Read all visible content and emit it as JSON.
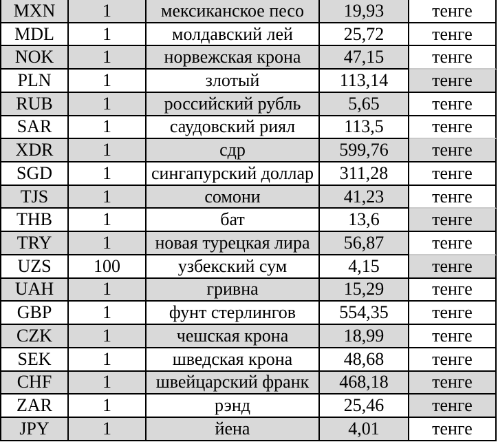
{
  "table": {
    "unit_label": "тенге",
    "colors": {
      "shaded_cell": "#d9d9d9",
      "grid_border": "#000000",
      "light_border": "#c9c9c9",
      "text": "#000000",
      "background": "#ffffff"
    },
    "columns": [
      "code",
      "quantity",
      "name",
      "rate",
      "unit"
    ],
    "rows": [
      {
        "code": "MXN",
        "quantity": "1",
        "name": "мексиканское песо",
        "rate": "19,93",
        "unit": "тенге",
        "shaded": true,
        "unit_shaded": false,
        "unit_border_top_light": false
      },
      {
        "code": "MDL",
        "quantity": "1",
        "name": "молдавский лей",
        "rate": "25,72",
        "unit": "тенге",
        "shaded": false,
        "unit_shaded": false,
        "unit_border_top_light": false
      },
      {
        "code": "NOK",
        "quantity": "1",
        "name": "норвежская крона",
        "rate": "47,15",
        "unit": "тенге",
        "shaded": true,
        "unit_shaded": false,
        "unit_border_top_light": false
      },
      {
        "code": "PLN",
        "quantity": "1",
        "name": "злотый",
        "rate": "113,14",
        "unit": "тенге",
        "shaded": false,
        "unit_shaded": true,
        "unit_border_top_light": true
      },
      {
        "code": "RUB",
        "quantity": "1",
        "name": "российский рубль",
        "rate": "5,65",
        "unit": "тенге",
        "shaded": true,
        "unit_shaded": false,
        "unit_border_top_light": false
      },
      {
        "code": "SAR",
        "quantity": "1",
        "name": "саудовский риял",
        "rate": "113,5",
        "unit": "тенге",
        "shaded": false,
        "unit_shaded": false,
        "unit_border_top_light": false
      },
      {
        "code": "XDR",
        "quantity": "1",
        "name": "сдр",
        "rate": "599,76",
        "unit": "тенге",
        "shaded": true,
        "unit_shaded": true,
        "unit_border_top_light": true
      },
      {
        "code": "SGD",
        "quantity": "1",
        "name": "сингапурский доллар",
        "rate": "311,28",
        "unit": "тенге",
        "shaded": false,
        "unit_shaded": false,
        "unit_border_top_light": false
      },
      {
        "code": "TJS",
        "quantity": "1",
        "name": "сомони",
        "rate": "41,23",
        "unit": "тенге",
        "shaded": true,
        "unit_shaded": false,
        "unit_border_top_light": false
      },
      {
        "code": "THB",
        "quantity": "1",
        "name": "бат",
        "rate": "13,6",
        "unit": "тенге",
        "shaded": false,
        "unit_shaded": true,
        "unit_border_top_light": true
      },
      {
        "code": "TRY",
        "quantity": "1",
        "name": "новая турецкая лира",
        "rate": "56,87",
        "unit": "тенге",
        "shaded": true,
        "unit_shaded": false,
        "unit_border_top_light": false
      },
      {
        "code": "UZS",
        "quantity": "100",
        "name": "узбекский сум",
        "rate": "4,15",
        "unit": "тенге",
        "shaded": false,
        "unit_shaded": true,
        "unit_border_top_light": true
      },
      {
        "code": "UAH",
        "quantity": "1",
        "name": "гривна",
        "rate": "15,29",
        "unit": "тенге",
        "shaded": true,
        "unit_shaded": false,
        "unit_border_top_light": false
      },
      {
        "code": "GBP",
        "quantity": "1",
        "name": "фунт стерлингов",
        "rate": "554,35",
        "unit": "тенге",
        "shaded": false,
        "unit_shaded": false,
        "unit_border_top_light": false
      },
      {
        "code": "CZK",
        "quantity": "1",
        "name": "чешская крона",
        "rate": "18,99",
        "unit": "тенге",
        "shaded": true,
        "unit_shaded": false,
        "unit_border_top_light": false
      },
      {
        "code": "SEK",
        "quantity": "1",
        "name": "шведская крона",
        "rate": "48,68",
        "unit": "тенге",
        "shaded": false,
        "unit_shaded": false,
        "unit_border_top_light": false
      },
      {
        "code": "CHF",
        "quantity": "1",
        "name": "швейцарский франк",
        "rate": "468,18",
        "unit": "тенге",
        "shaded": true,
        "unit_shaded": true,
        "unit_border_top_light": false
      },
      {
        "code": "ZAR",
        "quantity": "1",
        "name": "рэнд",
        "rate": "25,46",
        "unit": "тенге",
        "shaded": false,
        "unit_shaded": true,
        "unit_border_top_light": false
      },
      {
        "code": "JPY",
        "quantity": "1",
        "name": "йена",
        "rate": "4,01",
        "unit": "тенге",
        "shaded": true,
        "unit_shaded": false,
        "unit_border_top_light": false
      }
    ]
  }
}
